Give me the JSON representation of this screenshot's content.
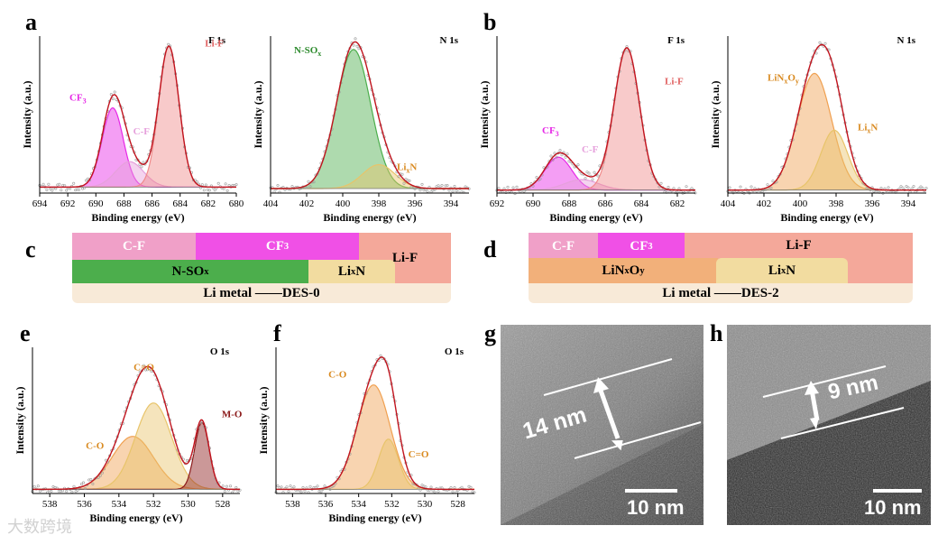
{
  "panel_letters": {
    "a": "a",
    "b": "b",
    "c": "c",
    "d": "d",
    "e": "e",
    "f": "f",
    "g": "g",
    "h": "h"
  },
  "colors": {
    "envelope": "#c0141e",
    "lif": "#f08a8a",
    "cf3": "#e628e6",
    "cf": "#e6a0dc",
    "nsox": "#4cae4c",
    "lixn": "#e8c46a",
    "linxoy": "#f0a050",
    "mo": "#8b1a1a",
    "co_orange": "#f0a050",
    "cdo_yellow": "#e8c46a"
  },
  "chart_data": [
    {
      "id": "a1",
      "type": "line",
      "core_level": "F 1s",
      "xlabel": "Binding energy (eV)",
      "ylabel": "Intensity (a.u.)",
      "xlim": [
        694,
        680
      ],
      "xticks": [
        694,
        692,
        690,
        688,
        686,
        684,
        682,
        680
      ],
      "ylim": [
        0,
        1.05
      ],
      "baseline": 0.04,
      "series": [
        {
          "name": "CF3",
          "label": "CF3",
          "center": 688.8,
          "sigma": 0.75,
          "amp": 0.53,
          "color": "#e628e6"
        },
        {
          "name": "C-F",
          "label": "C-F",
          "center": 687.6,
          "sigma": 1.0,
          "amp": 0.17,
          "color": "#e6a0dc"
        },
        {
          "name": "Li-F",
          "label": "Li-F",
          "center": 684.8,
          "sigma": 0.72,
          "amp": 0.94,
          "color": "#f08a8a"
        }
      ]
    },
    {
      "id": "a2",
      "type": "line",
      "core_level": "N 1s",
      "xlabel": "Binding energy (eV)",
      "ylabel": "Intensity (a.u.)",
      "xlim": [
        404,
        393
      ],
      "xticks": [
        404,
        402,
        400,
        398,
        396,
        394
      ],
      "ylim": [
        0,
        1.05
      ],
      "baseline": 0.03,
      "series": [
        {
          "name": "N-SOx",
          "label": "N-SOx",
          "center": 399.4,
          "sigma": 0.95,
          "amp": 0.93,
          "color": "#4cae4c"
        },
        {
          "name": "LixN",
          "label": "LixN",
          "center": 398.0,
          "sigma": 0.9,
          "amp": 0.16,
          "color": "#e8c46a"
        }
      ]
    },
    {
      "id": "b1",
      "type": "line",
      "core_level": "F 1s",
      "xlabel": "Binding energy (eV)",
      "ylabel": "Intensity (a.u.)",
      "xlim": [
        692,
        681
      ],
      "xticks": [
        692,
        690,
        688,
        686,
        684,
        682
      ],
      "ylim": [
        0,
        1.05
      ],
      "baseline": 0.02,
      "series": [
        {
          "name": "CF3",
          "label": "CF3",
          "center": 688.6,
          "sigma": 0.75,
          "amp": 0.22,
          "color": "#e628e6"
        },
        {
          "name": "C-F",
          "label": "C-F",
          "center": 687.3,
          "sigma": 0.95,
          "amp": 0.07,
          "color": "#e6a0dc"
        },
        {
          "name": "Li-F",
          "label": "Li-F",
          "center": 684.8,
          "sigma": 0.7,
          "amp": 0.95,
          "color": "#f08a8a"
        }
      ]
    },
    {
      "id": "b2",
      "type": "line",
      "core_level": "N 1s",
      "xlabel": "Binding energy (eV)",
      "ylabel": "Intensity (a.u.)",
      "xlim": [
        404,
        393
      ],
      "xticks": [
        404,
        402,
        400,
        398,
        396,
        394
      ],
      "ylim": [
        0,
        1.05
      ],
      "baseline": 0.02,
      "series": [
        {
          "name": "LiNxOy",
          "label": "LiNxOy",
          "center": 399.2,
          "sigma": 0.95,
          "amp": 0.78,
          "color": "#f0a050"
        },
        {
          "name": "LixN",
          "label": "LixN",
          "center": 398.1,
          "sigma": 0.75,
          "amp": 0.4,
          "color": "#e8c46a"
        }
      ]
    },
    {
      "id": "e",
      "type": "line",
      "core_level": "O 1s",
      "xlabel": "Binding energy (eV)",
      "ylabel": "Intensity (a.u.)",
      "xlim": [
        539,
        527
      ],
      "xticks": [
        538,
        536,
        534,
        532,
        530,
        528
      ],
      "ylim": [
        0,
        1.05
      ],
      "baseline": 0.03,
      "series": [
        {
          "name": "C-O",
          "label": "C-O",
          "center": 533.2,
          "sigma": 1.2,
          "amp": 0.38,
          "color": "#f0a050"
        },
        {
          "name": "C=O",
          "label": "C=O",
          "center": 532.0,
          "sigma": 1.05,
          "amp": 0.62,
          "color": "#e8c46a"
        },
        {
          "name": "M-O",
          "label": "M-O",
          "center": 529.2,
          "sigma": 0.42,
          "amp": 0.48,
          "color": "#8b1a1a"
        }
      ]
    },
    {
      "id": "f",
      "type": "line",
      "core_level": "O 1s",
      "xlabel": "Binding energy (eV)",
      "ylabel": "Intensity (a.u.)",
      "xlim": [
        539,
        527
      ],
      "xticks": [
        538,
        536,
        534,
        532,
        530,
        528
      ],
      "ylim": [
        0,
        1.05
      ],
      "baseline": 0.03,
      "series": [
        {
          "name": "C-O",
          "label": "C-O",
          "center": 533.1,
          "sigma": 1.0,
          "amp": 0.75,
          "color": "#f0a050"
        },
        {
          "name": "C=O",
          "label": "C=O",
          "center": 532.2,
          "sigma": 0.6,
          "amp": 0.36,
          "color": "#e8c46a"
        }
      ]
    }
  ],
  "schematic_c": {
    "top_row": [
      "C-F",
      "CF3",
      "Li-F"
    ],
    "mid_row": [
      "N-SOx",
      "LixN"
    ],
    "base": "Li metal ——DES-0"
  },
  "schematic_d": {
    "top_row": [
      "C-F",
      "CF3",
      "Li-F"
    ],
    "mid_row": [
      "LiNxOy",
      "LixN"
    ],
    "base": "Li metal ——DES-2"
  },
  "tem_g": {
    "thickness": "14 nm",
    "scale": "10 nm"
  },
  "tem_h": {
    "thickness": "9 nm",
    "scale": "10 nm"
  },
  "watermark": "大数跨境"
}
